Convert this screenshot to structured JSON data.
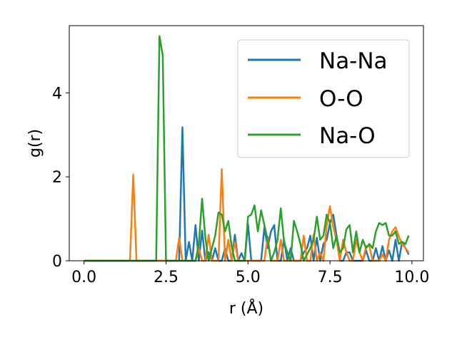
{
  "chart_data": {
    "type": "line",
    "xlabel": "r (Å)",
    "ylabel": "g(r)",
    "xlim": [
      -0.45,
      10.35
    ],
    "ylim": [
      0,
      5.6
    ],
    "xticks": [
      0.0,
      2.5,
      5.0,
      7.5,
      10.0
    ],
    "xtick_labels": [
      "0.0",
      "2.5",
      "5.0",
      "7.5",
      "10.0"
    ],
    "yticks": [
      0,
      2,
      4
    ],
    "ytick_labels": [
      "0",
      "2",
      "4"
    ],
    "grid": false,
    "legend_position": "top-right",
    "series": [
      {
        "name": "Na-Na",
        "color": "#1f77b4",
        "x": [
          0.0,
          2.8,
          2.9,
          3.0,
          3.1,
          3.2,
          3.3,
          3.4,
          3.5,
          3.6,
          3.7,
          3.8,
          3.9,
          4.0,
          4.1,
          4.2,
          4.3,
          4.4,
          4.5,
          4.6,
          4.7,
          4.8,
          4.9,
          5.0,
          5.1,
          5.2,
          5.3,
          5.4,
          5.5,
          5.6,
          5.7,
          5.8,
          5.9,
          6.0,
          6.1,
          6.2,
          6.3,
          6.4,
          6.5,
          6.6,
          6.7,
          6.8,
          6.9,
          7.0,
          7.1,
          7.2,
          7.3,
          7.4,
          7.5,
          7.6,
          7.7,
          7.8,
          7.9,
          8.0,
          8.1,
          8.2,
          8.3,
          8.4,
          8.5,
          8.6,
          8.7,
          8.8,
          8.9,
          9.0,
          9.1,
          9.2,
          9.3,
          9.4,
          9.5,
          9.6,
          9.7,
          9.8,
          9.9
        ],
        "values": [
          0,
          0,
          0,
          3.18,
          0,
          0.45,
          0,
          0.85,
          0,
          0.72,
          0,
          0.2,
          0,
          0.3,
          0,
          0,
          0.3,
          0,
          0,
          0.62,
          0,
          0.18,
          0,
          0.88,
          0,
          0,
          0,
          0,
          0.8,
          0.3,
          0.7,
          0.85,
          0,
          0,
          0.5,
          0,
          0.3,
          0,
          0,
          0,
          0.2,
          0.3,
          0.6,
          0,
          0.55,
          0,
          0.4,
          0.5,
          0.9,
          1.1,
          0.6,
          0,
          0,
          0.2,
          0.2,
          0,
          0,
          0,
          0,
          0.25,
          0,
          0,
          0.3,
          0,
          0.35,
          0,
          0.25,
          0,
          0.5,
          0,
          0.45,
          0.3,
          0.15
        ]
      },
      {
        "name": "O-O",
        "color": "#ff7f0e",
        "x": [
          0.0,
          1.4,
          1.5,
          1.6,
          2.8,
          2.9,
          3.0,
          3.1,
          3.2,
          3.3,
          3.4,
          3.5,
          3.6,
          3.7,
          3.8,
          3.9,
          4.0,
          4.1,
          4.2,
          4.3,
          4.4,
          4.5,
          4.6,
          4.7,
          4.8,
          4.9,
          5.0,
          5.1,
          5.2,
          5.3,
          5.4,
          5.5,
          5.6,
          5.7,
          5.8,
          5.9,
          6.0,
          6.1,
          6.2,
          6.3,
          6.4,
          6.5,
          6.6,
          6.7,
          6.8,
          6.9,
          7.0,
          7.1,
          7.2,
          7.3,
          7.4,
          7.5,
          7.6,
          7.7,
          7.8,
          7.9,
          8.0,
          8.1,
          8.2,
          8.3,
          8.4,
          8.5,
          8.6,
          8.7,
          8.8,
          8.9,
          9.0,
          9.1,
          9.2,
          9.3,
          9.4,
          9.5,
          9.6,
          9.7,
          9.8,
          9.9
        ],
        "values": [
          0,
          0,
          2.05,
          0,
          0,
          0.55,
          0,
          0,
          0,
          0,
          0,
          0.3,
          0,
          0,
          0.62,
          0,
          0,
          0,
          2.18,
          0,
          0.5,
          0,
          0.45,
          0,
          0,
          0,
          0,
          0,
          0,
          0,
          0,
          0,
          0.58,
          0,
          0,
          0,
          0.5,
          0,
          0,
          0,
          0,
          0,
          0,
          0.6,
          0,
          0,
          0.62,
          0,
          0.2,
          0,
          0.85,
          1.3,
          0.8,
          0.5,
          0,
          0.5,
          0.2,
          0,
          0,
          0.5,
          0.2,
          0,
          0.35,
          0.35,
          0,
          0,
          0,
          0.15,
          0,
          0.5,
          0.7,
          0.8,
          0.58,
          0.4,
          0.3,
          0.2
        ]
      },
      {
        "name": "Na-O",
        "color": "#2ca02c",
        "x": [
          0.0,
          2.1,
          2.2,
          2.3,
          2.4,
          2.5,
          3.4,
          3.5,
          3.6,
          3.7,
          3.8,
          3.9,
          4.0,
          4.1,
          4.2,
          4.3,
          4.4,
          4.5,
          4.6,
          4.7,
          4.8,
          4.9,
          5.0,
          5.1,
          5.2,
          5.3,
          5.4,
          5.5,
          5.6,
          5.7,
          5.8,
          5.9,
          6.0,
          6.1,
          6.2,
          6.3,
          6.4,
          6.5,
          6.6,
          6.7,
          6.8,
          6.9,
          7.0,
          7.1,
          7.2,
          7.3,
          7.4,
          7.5,
          7.6,
          7.7,
          7.8,
          7.9,
          8.0,
          8.1,
          8.2,
          8.3,
          8.4,
          8.5,
          8.6,
          8.7,
          8.8,
          8.9,
          9.0,
          9.1,
          9.2,
          9.3,
          9.4,
          9.5,
          9.6,
          9.7,
          9.8,
          9.9
        ],
        "values": [
          0,
          0,
          0,
          5.35,
          4.9,
          0,
          0,
          0.4,
          1.48,
          0.55,
          0,
          0.3,
          0.6,
          1.15,
          1.1,
          0.7,
          0.95,
          0.35,
          0,
          0,
          0,
          0,
          1.05,
          1.1,
          1.32,
          0.7,
          1.2,
          0.85,
          0.5,
          0,
          0.2,
          0.5,
          1.25,
          0.45,
          0.2,
          0,
          0.95,
          0.7,
          0.4,
          0,
          0.15,
          0.3,
          0.5,
          1.05,
          0.5,
          0.6,
          1.1,
          0.9,
          0.3,
          0.6,
          0.2,
          0.3,
          0.75,
          0.85,
          0.2,
          0.7,
          0.2,
          0.5,
          0.3,
          0.4,
          0.3,
          0.7,
          0.9,
          0.85,
          0.9,
          0.6,
          0.6,
          0.7,
          0.4,
          0.45,
          0.4,
          0.6
        ]
      }
    ]
  }
}
